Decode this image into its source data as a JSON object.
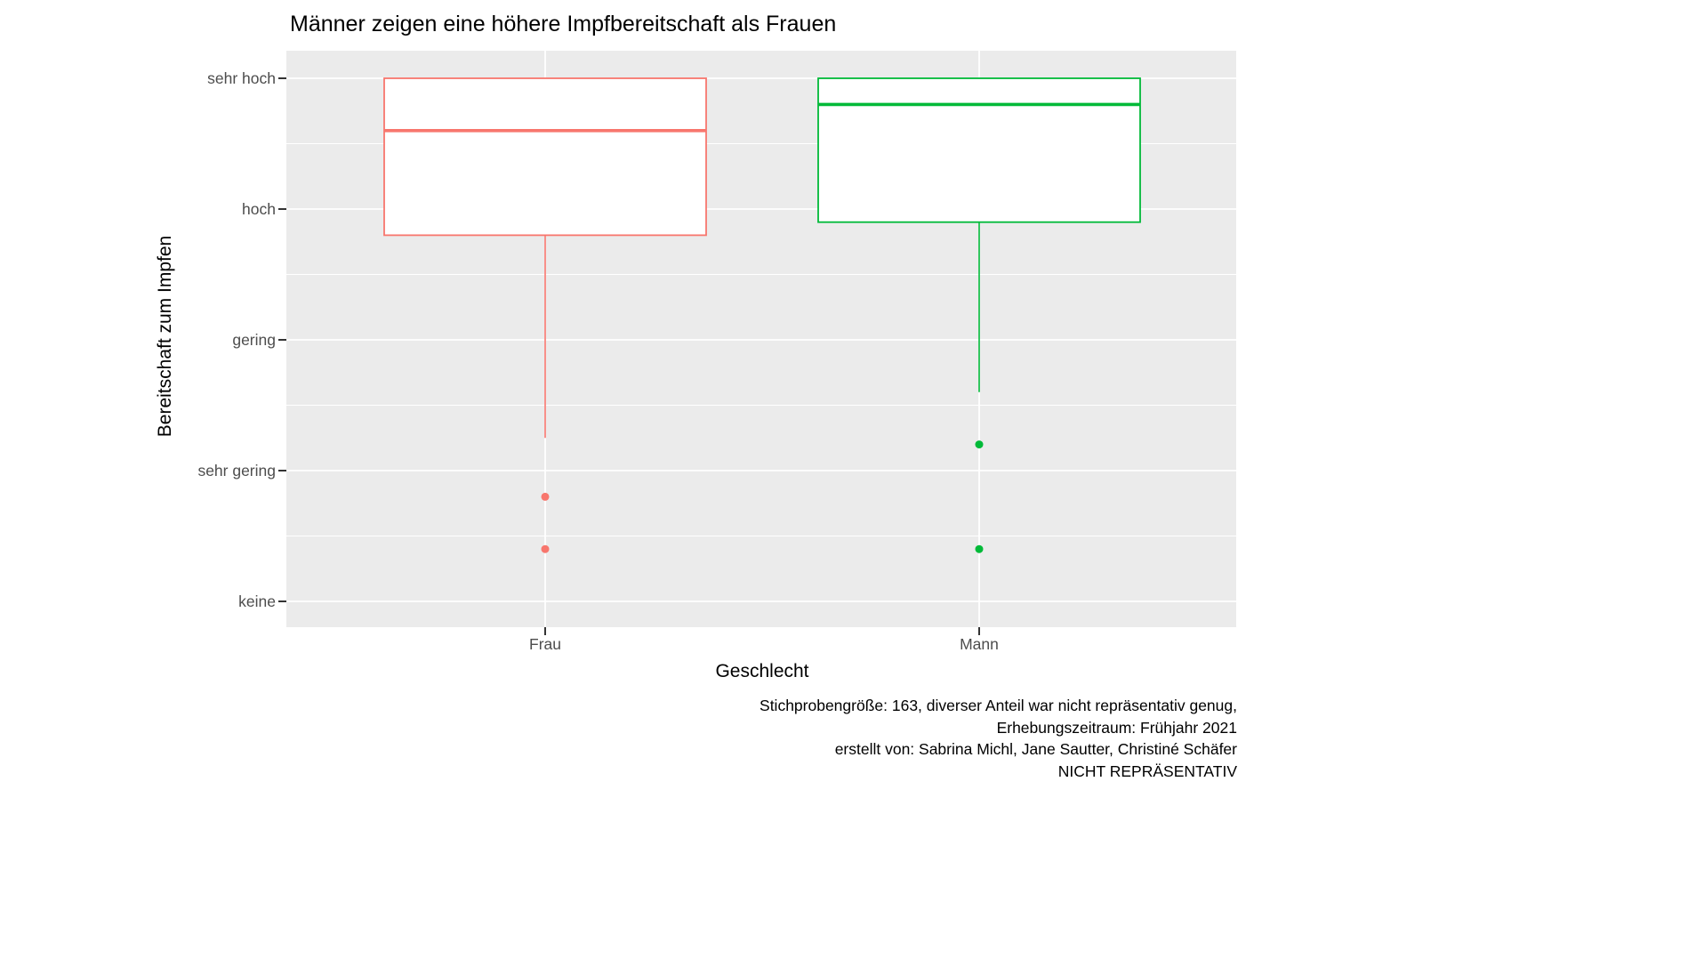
{
  "chart_data": {
    "type": "boxplot",
    "title": "Männer zeigen eine höhere Impfbereitschaft als Frauen",
    "xlabel": "Geschlecht",
    "ylabel": "Bereitschaft zum Impfen",
    "categories": [
      "Frau",
      "Mann"
    ],
    "y_tick_labels": [
      "keine",
      "sehr gering",
      "gering",
      "hoch",
      "sehr hoch"
    ],
    "y_tick_values": [
      1,
      2,
      3,
      4,
      5
    ],
    "ylim": [
      0.8,
      5.2
    ],
    "grid": "major-white-on-gray",
    "legend": "none",
    "panel_background": "#EBEBEB",
    "gridline_color": "#FFFFFF",
    "series": [
      {
        "name": "Frau",
        "color": "#F8766D",
        "q1": 3.8,
        "median": 4.6,
        "q3": 5.0,
        "whisker_low": 2.25,
        "whisker_high": 5.0,
        "outliers": [
          1.8,
          1.4
        ]
      },
      {
        "name": "Mann",
        "color": "#00BA38",
        "q1": 3.9,
        "median": 4.8,
        "q3": 5.0,
        "whisker_low": 2.6,
        "whisker_high": 5.0,
        "outliers": [
          2.2,
          1.4
        ]
      }
    ],
    "caption_lines": [
      "Stichprobengröße: 163, diverser Anteil war nicht repräsentativ genug,",
      "Erhebungszeitraum: Frühjahr 2021",
      "erstellt von: Sabrina Michl, Jane Sautter, Christiné Schäfer",
      "NICHT REPRÄSENTATIV"
    ]
  }
}
